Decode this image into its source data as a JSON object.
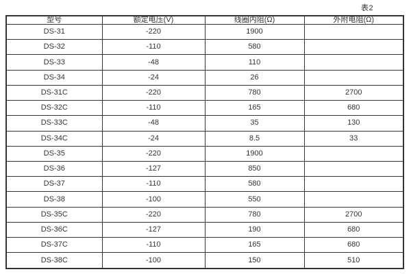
{
  "page": {
    "table_label": "表2"
  },
  "table": {
    "columns": [
      "型号",
      "额定电压(V)",
      "线圈内阻(Ω)",
      "外附电阻(Ω)"
    ],
    "rows": [
      [
        "DS-31",
        "-220",
        "1900",
        ""
      ],
      [
        "DS-32",
        "-110",
        "580",
        ""
      ],
      [
        "DS-33",
        "-48",
        "110",
        ""
      ],
      [
        "DS-34",
        "-24",
        "26",
        ""
      ],
      [
        "DS-31C",
        "-220",
        "780",
        "2700"
      ],
      [
        "DS-32C",
        "-110",
        "165",
        "680"
      ],
      [
        "DS-33C",
        "-48",
        "35",
        "130"
      ],
      [
        "DS-34C",
        "-24",
        "8.5",
        "33"
      ],
      [
        "DS-35",
        "-220",
        "1900",
        ""
      ],
      [
        "DS-36",
        "-127",
        "850",
        ""
      ],
      [
        "DS-37",
        "-110",
        "580",
        ""
      ],
      [
        "DS-38",
        "-100",
        "550",
        ""
      ],
      [
        "DS-35C",
        "-220",
        "780",
        "2700"
      ],
      [
        "DS-36C",
        "-127",
        "190",
        "680"
      ],
      [
        "DS-37C",
        "-110",
        "165",
        "680"
      ],
      [
        "DS-38C",
        "-100",
        "150",
        "510"
      ]
    ]
  },
  "colors": {
    "border": "#333333",
    "text": "#333333",
    "background": "#ffffff"
  }
}
